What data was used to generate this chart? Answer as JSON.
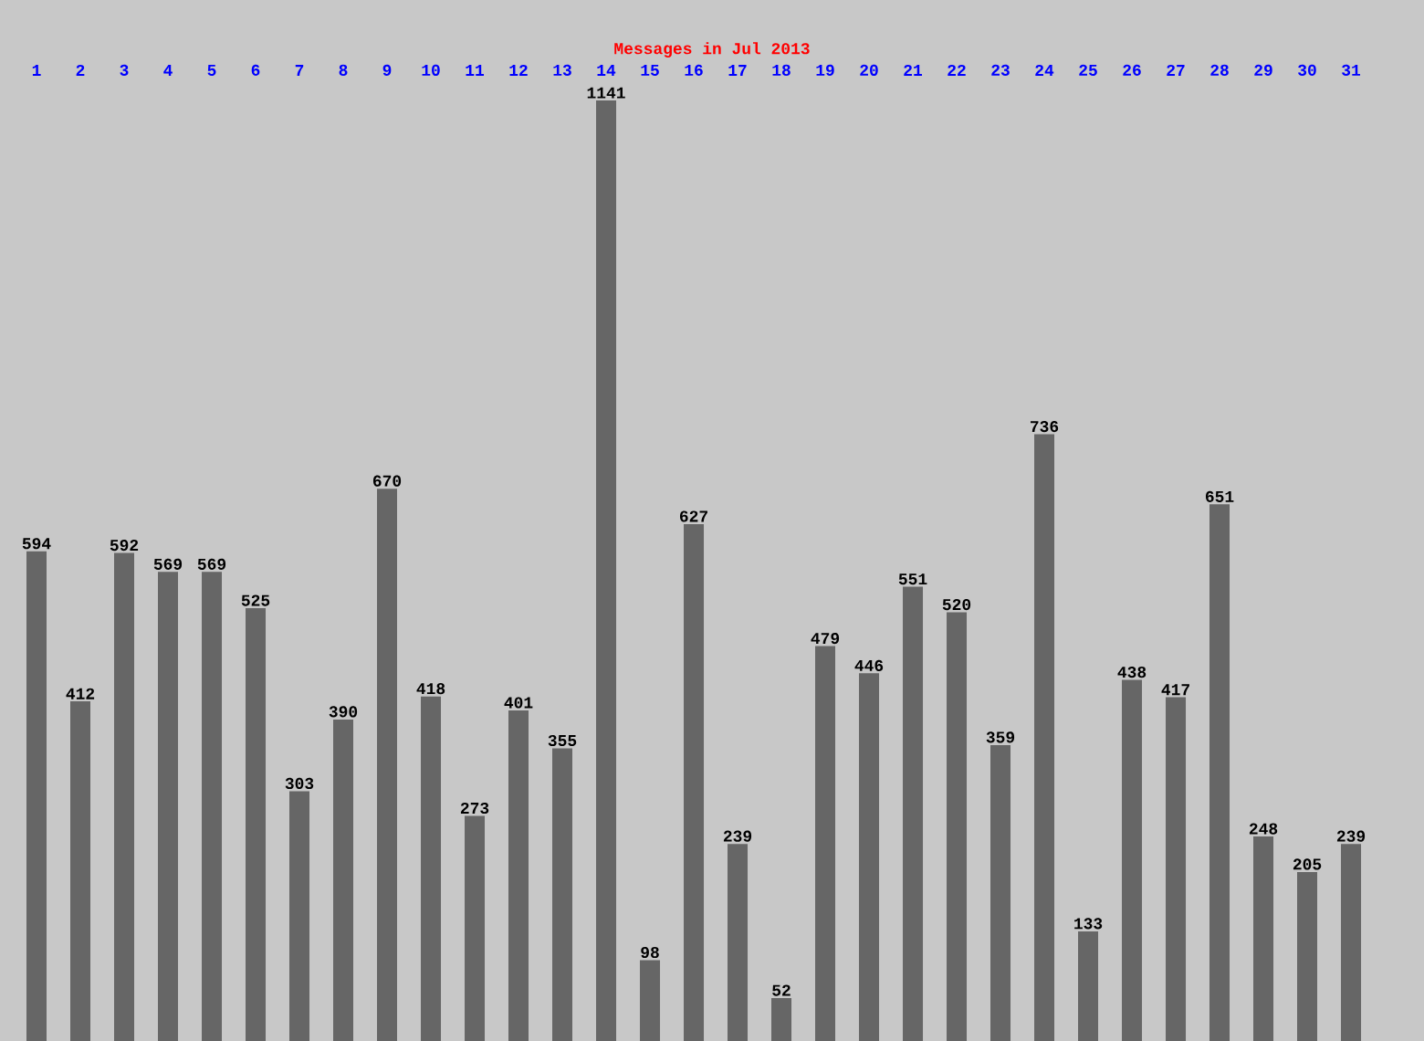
{
  "chart_data": {
    "type": "bar",
    "title": "Messages in Jul 2013",
    "categories": [
      "1",
      "2",
      "3",
      "4",
      "5",
      "6",
      "7",
      "8",
      "9",
      "10",
      "11",
      "12",
      "13",
      "14",
      "15",
      "16",
      "17",
      "18",
      "19",
      "20",
      "21",
      "22",
      "23",
      "24",
      "25",
      "26",
      "27",
      "28",
      "29",
      "30",
      "31"
    ],
    "values": [
      594,
      412,
      592,
      569,
      569,
      525,
      303,
      390,
      670,
      418,
      273,
      401,
      355,
      1141,
      98,
      627,
      239,
      52,
      479,
      446,
      551,
      520,
      359,
      736,
      133,
      438,
      417,
      651,
      248,
      205,
      239
    ],
    "color": "#666666",
    "data_labels": true,
    "grid": false
  }
}
